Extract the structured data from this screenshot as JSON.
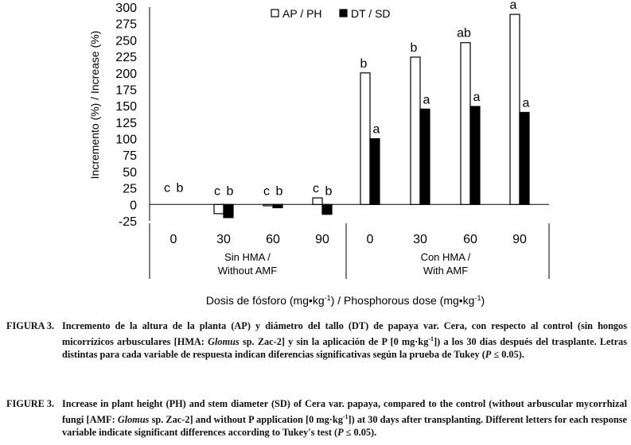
{
  "chart_data": {
    "type": "bar",
    "categories": [
      "0",
      "30",
      "60",
      "90",
      "0",
      "30",
      "60",
      "90"
    ],
    "groups": [
      {
        "label_line1": "Sin HMA /",
        "label_line2": "Without AMF"
      },
      {
        "label_line1": "Con HMA /",
        "label_line2": "With AMF"
      }
    ],
    "series": [
      {
        "name": "AP / PH",
        "fill": "#ffffff",
        "values": [
          0,
          -14,
          -2,
          10,
          200,
          224,
          246,
          289
        ],
        "letters": [
          "c",
          "c",
          "c",
          "c",
          "b",
          "b",
          "ab",
          "a"
        ]
      },
      {
        "name": "DT / SD",
        "fill": "#000000",
        "values": [
          0,
          -20,
          -5,
          -15,
          100,
          145,
          149,
          140
        ],
        "letters": [
          "b",
          "b",
          "b",
          "b",
          "a",
          "a",
          "a",
          "a"
        ]
      }
    ],
    "ylabel": "Incremento (%) / Increase (%)",
    "xlabel": "Dosis de fósforo (mg•kg-1) / Phosphorous dose (mg•kg-1)",
    "xlabel_parts": [
      "Dosis de fósforo (mg•kg",
      "-1",
      ") / Phosphorous dose (mg•kg",
      "-1",
      ")"
    ],
    "ylim": [
      -25,
      300
    ],
    "yticks": [
      "-25",
      "0",
      "25",
      "50",
      "75",
      "100",
      "125",
      "150",
      "175",
      "200",
      "225",
      "250",
      "275",
      "300"
    ],
    "legend_position": "top-center"
  },
  "captions": {
    "es": {
      "label": "FIGURA 3.",
      "parts": [
        "Incremento de la altura de la planta (AP) y diámetro del tallo (DT) de papaya var. Cera, con respecto al control (sin hongos micorrízicos arbusculares [HMA: ",
        "Glomus",
        " sp. Zac-2] y sin la aplicación de P [0 mg·kg",
        "-1",
        "]) a los 30 días después del trasplante. Letras distintas para cada variable de respuesta indican diferencias significativas según la prueba de Tukey (",
        "P",
        " ≤ 0.05)."
      ]
    },
    "en": {
      "label": "FIGURE 3.",
      "parts": [
        "Increase in plant height (PH) and stem diameter (SD) of Cera var. papaya, compared to the control (without arbuscular mycorrhizal fungi [AMF: ",
        "Glomus",
        " sp. Zac-2] and without P application [0 mg·kg",
        "-1",
        "]) at 30 days after transplanting. Different letters for each response variable indicate significant differences according to Tukey's test (",
        "P",
        " ≤ 0.05)."
      ]
    }
  }
}
